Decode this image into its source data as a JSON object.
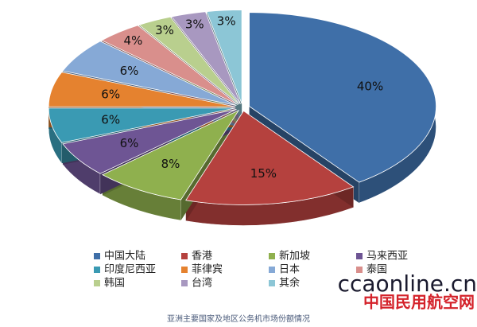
{
  "chart_data": {
    "type": "pie",
    "categories": [
      "中国大陆",
      "香港",
      "新加坡",
      "马来西亚",
      "印度尼西亚",
      "菲律宾",
      "日本",
      "泰国",
      "韩国",
      "台湾",
      "其余"
    ],
    "values": [
      40,
      15,
      8,
      6,
      6,
      6,
      6,
      4,
      3,
      3,
      3
    ],
    "value_labels": [
      "40%",
      "15%",
      "8%",
      "6%",
      "6%",
      "6%",
      "6%",
      "4%",
      "3%",
      "3%",
      "3%"
    ],
    "colors": [
      "#3f6fa8",
      "#b5413e",
      "#8fb04e",
      "#6e5594",
      "#3a9ab3",
      "#e5822f",
      "#86a9d6",
      "#d98f8c",
      "#b9cf8e",
      "#a898c0",
      "#8cc6d6"
    ],
    "caption": "亚洲主要国家及地区公务机市场份额情况"
  },
  "watermark": {
    "site": "ccaonline.cn",
    "name": "中国民用航空网"
  }
}
